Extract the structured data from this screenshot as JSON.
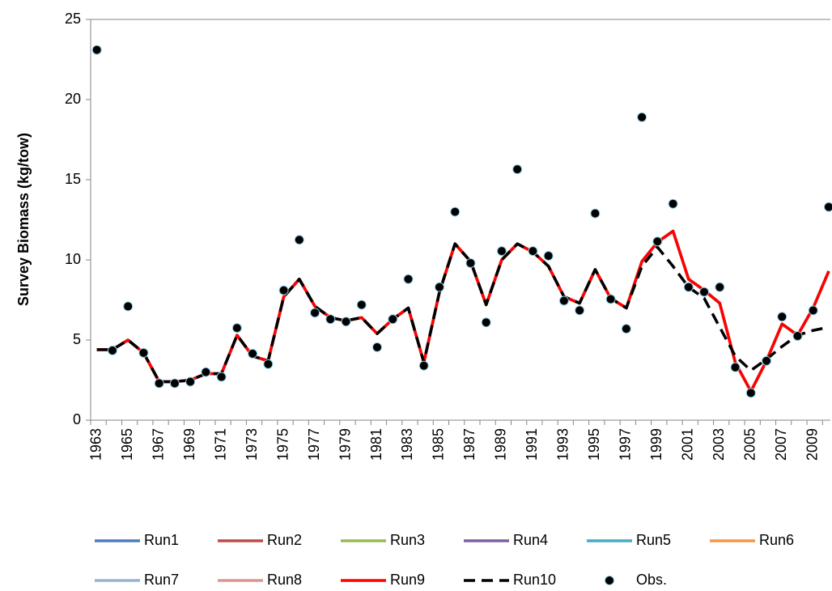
{
  "chart_data": {
    "type": "line",
    "y_label": "Survey Biomass (kg/tow)",
    "categories": [
      "1963",
      null,
      "1965",
      null,
      "1967",
      null,
      "1969",
      null,
      "1971",
      null,
      "1973",
      null,
      "1975",
      null,
      "1977",
      null,
      "1979",
      null,
      "1981",
      null,
      "1983",
      null,
      "1985",
      null,
      "1987",
      null,
      "1989",
      null,
      "1991",
      null,
      "1993",
      null,
      "1995",
      null,
      "1997",
      null,
      "1999",
      null,
      "2001",
      null,
      "2003",
      null,
      "2005",
      null,
      "2007",
      null,
      "2009",
      null
    ],
    "ylim": [
      0,
      25
    ],
    "yticks": [
      0,
      5,
      10,
      15,
      20,
      25
    ],
    "legend": "bottom",
    "series": [
      {
        "name": "Run1",
        "color": "#4a7ebb",
        "values": [
          4.4,
          4.4,
          5.0,
          4.2,
          2.4,
          2.4,
          2.5,
          2.9,
          2.9,
          5.3,
          4.0,
          3.7,
          7.7,
          8.8,
          7.1,
          6.4,
          6.2,
          6.4,
          5.4,
          6.3,
          7.0,
          3.6,
          8.0,
          11.0,
          9.9,
          7.2,
          10.0,
          11.0,
          10.5,
          9.6,
          7.7,
          7.3,
          9.4,
          7.6,
          7.0,
          9.9,
          11.1,
          11.8,
          8.8,
          8.1,
          7.3,
          3.6,
          1.8,
          3.7,
          6.0,
          5.3,
          7.0,
          9.3
        ]
      },
      {
        "name": "Run2",
        "color": "#be4b48",
        "values": [
          4.4,
          4.4,
          5.0,
          4.2,
          2.4,
          2.4,
          2.5,
          2.9,
          2.9,
          5.3,
          4.0,
          3.7,
          7.7,
          8.8,
          7.1,
          6.4,
          6.2,
          6.4,
          5.4,
          6.3,
          7.0,
          3.6,
          8.0,
          11.0,
          9.9,
          7.2,
          10.0,
          11.0,
          10.5,
          9.6,
          7.7,
          7.3,
          9.4,
          7.6,
          7.0,
          9.9,
          11.1,
          11.8,
          8.8,
          8.1,
          7.3,
          3.6,
          1.8,
          3.7,
          6.0,
          5.3,
          7.0,
          9.3
        ]
      },
      {
        "name": "Run3",
        "color": "#98b954",
        "values": [
          4.4,
          4.4,
          5.0,
          4.2,
          2.4,
          2.4,
          2.5,
          2.9,
          2.9,
          5.3,
          4.0,
          3.7,
          7.7,
          8.8,
          7.1,
          6.4,
          6.2,
          6.4,
          5.4,
          6.3,
          7.0,
          3.6,
          8.0,
          11.0,
          9.9,
          7.2,
          10.0,
          11.0,
          10.5,
          9.6,
          7.7,
          7.3,
          9.4,
          7.6,
          7.0,
          9.9,
          11.1,
          11.8,
          8.8,
          8.1,
          7.3,
          3.6,
          1.8,
          3.7,
          6.0,
          5.3,
          7.0,
          9.3
        ]
      },
      {
        "name": "Run4",
        "color": "#7d60a0",
        "values": [
          4.4,
          4.4,
          5.0,
          4.2,
          2.4,
          2.4,
          2.5,
          2.9,
          2.9,
          5.3,
          4.0,
          3.7,
          7.7,
          8.8,
          7.1,
          6.4,
          6.2,
          6.4,
          5.4,
          6.3,
          7.0,
          3.6,
          8.0,
          11.0,
          9.9,
          7.2,
          10.0,
          11.0,
          10.5,
          9.6,
          7.7,
          7.3,
          9.4,
          7.6,
          7.0,
          9.9,
          11.1,
          11.8,
          8.8,
          8.1,
          7.3,
          3.6,
          1.8,
          3.7,
          6.0,
          5.3,
          7.0,
          9.3
        ]
      },
      {
        "name": "Run5",
        "color": "#46aac5",
        "values": [
          4.4,
          4.4,
          5.0,
          4.2,
          2.4,
          2.4,
          2.5,
          2.9,
          2.9,
          5.3,
          4.0,
          3.7,
          7.7,
          8.8,
          7.1,
          6.4,
          6.2,
          6.4,
          5.4,
          6.3,
          7.0,
          3.6,
          8.0,
          11.0,
          9.9,
          7.2,
          10.0,
          11.0,
          10.5,
          9.6,
          7.7,
          7.3,
          9.4,
          7.6,
          7.0,
          9.9,
          11.1,
          11.8,
          8.8,
          8.1,
          7.3,
          3.6,
          1.8,
          3.7,
          6.0,
          5.3,
          7.0,
          9.3
        ]
      },
      {
        "name": "Run6",
        "color": "#f79646",
        "values": [
          4.4,
          4.4,
          5.0,
          4.2,
          2.4,
          2.4,
          2.5,
          2.9,
          2.9,
          5.3,
          4.0,
          3.7,
          7.7,
          8.8,
          7.1,
          6.4,
          6.2,
          6.4,
          5.4,
          6.3,
          7.0,
          3.6,
          8.0,
          11.0,
          9.9,
          7.2,
          10.0,
          11.0,
          10.5,
          9.6,
          7.7,
          7.3,
          9.4,
          7.6,
          7.0,
          9.9,
          11.1,
          11.8,
          8.8,
          8.1,
          7.3,
          3.6,
          1.8,
          3.7,
          6.0,
          5.3,
          7.0,
          9.3
        ]
      },
      {
        "name": "Run7",
        "color": "#95b3d7",
        "values": [
          4.4,
          4.4,
          5.0,
          4.2,
          2.4,
          2.4,
          2.5,
          2.9,
          2.9,
          5.3,
          4.0,
          3.7,
          7.7,
          8.8,
          7.1,
          6.4,
          6.2,
          6.4,
          5.4,
          6.3,
          7.0,
          3.6,
          8.0,
          11.0,
          9.9,
          7.2,
          10.0,
          11.0,
          10.5,
          9.6,
          7.7,
          7.3,
          9.4,
          7.6,
          7.0,
          9.9,
          11.1,
          11.8,
          8.8,
          8.1,
          7.3,
          3.6,
          1.8,
          3.7,
          6.0,
          5.3,
          7.0,
          9.3
        ]
      },
      {
        "name": "Run8",
        "color": "#d99694",
        "values": [
          4.4,
          4.4,
          5.0,
          4.2,
          2.4,
          2.4,
          2.5,
          2.9,
          2.9,
          5.3,
          4.0,
          3.7,
          7.7,
          8.8,
          7.1,
          6.4,
          6.2,
          6.4,
          5.4,
          6.3,
          7.0,
          3.6,
          8.0,
          11.0,
          9.9,
          7.2,
          10.0,
          11.0,
          10.5,
          9.6,
          7.7,
          7.3,
          9.4,
          7.6,
          7.0,
          9.9,
          11.1,
          11.8,
          8.8,
          8.1,
          7.3,
          3.6,
          1.8,
          3.7,
          6.0,
          5.3,
          7.0,
          9.3
        ]
      },
      {
        "name": "Run9",
        "color": "#ff0000",
        "values": [
          4.4,
          4.4,
          5.0,
          4.2,
          2.4,
          2.4,
          2.5,
          2.9,
          2.9,
          5.3,
          4.0,
          3.7,
          7.7,
          8.8,
          7.1,
          6.4,
          6.2,
          6.4,
          5.4,
          6.3,
          7.0,
          3.6,
          8.0,
          11.0,
          9.9,
          7.2,
          10.0,
          11.0,
          10.5,
          9.6,
          7.7,
          7.3,
          9.4,
          7.6,
          7.0,
          9.9,
          11.1,
          11.8,
          8.8,
          8.1,
          7.3,
          3.6,
          1.8,
          3.7,
          6.0,
          5.3,
          7.0,
          9.3
        ]
      },
      {
        "name": "Run10",
        "color": "#000000",
        "dashed": true,
        "values": [
          4.4,
          4.4,
          5.0,
          4.2,
          2.4,
          2.4,
          2.5,
          2.9,
          2.9,
          5.3,
          4.0,
          3.7,
          7.7,
          8.8,
          7.1,
          6.4,
          6.2,
          6.4,
          5.4,
          6.3,
          7.0,
          3.6,
          8.0,
          11.0,
          9.9,
          7.2,
          10.0,
          11.0,
          10.5,
          9.6,
          7.7,
          7.3,
          9.4,
          7.6,
          7.0,
          9.6,
          10.8,
          9.6,
          8.3,
          7.6,
          5.8,
          4.0,
          3.1,
          3.8,
          4.6,
          5.3,
          5.6,
          5.8
        ]
      },
      {
        "name": "Obs.",
        "color": "#000000",
        "marker_edge": "#8ecfe6",
        "markers_only": true,
        "values": [
          23.1,
          4.35,
          7.1,
          4.2,
          2.3,
          2.3,
          2.4,
          3.0,
          2.7,
          5.75,
          4.15,
          3.5,
          8.1,
          11.25,
          6.7,
          6.3,
          6.15,
          7.2,
          4.55,
          6.3,
          8.8,
          3.4,
          8.3,
          13.0,
          9.8,
          6.1,
          10.55,
          15.65,
          10.55,
          10.25,
          7.45,
          6.85,
          12.9,
          7.55,
          5.7,
          18.9,
          11.15,
          13.5,
          8.3,
          8.0,
          8.3,
          3.3,
          1.7,
          3.7,
          6.45,
          5.25,
          6.85,
          13.3
        ]
      }
    ]
  }
}
